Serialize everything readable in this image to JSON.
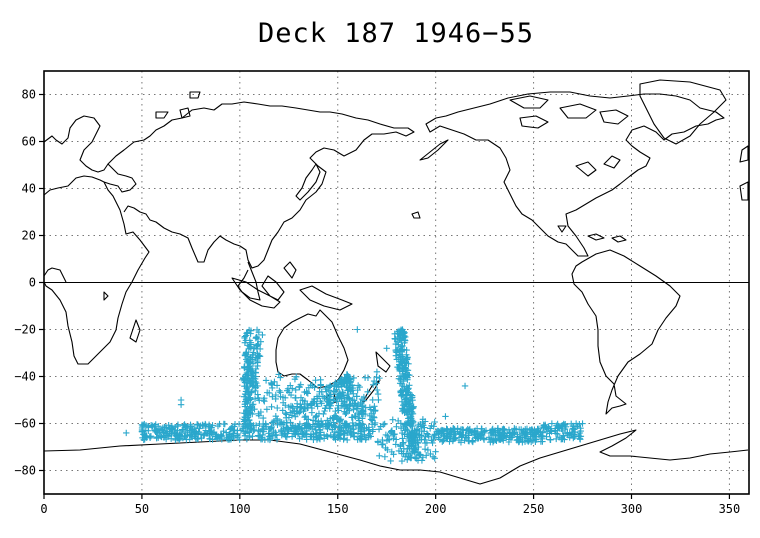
{
  "title": "Deck 187 1946−55",
  "map": {
    "x_ticks": [
      "0",
      "50",
      "100",
      "150",
      "200",
      "250",
      "300",
      "350"
    ],
    "y_ticks": [
      "80",
      "60",
      "40",
      "20",
      "0",
      "−20",
      "−40",
      "−60",
      "−80"
    ],
    "xlim": [
      0,
      360
    ],
    "ylim": [
      -90,
      90
    ],
    "grid": true,
    "equator_line": true,
    "marker": "+",
    "marker_color": "#2aa7cc",
    "coastline_color": "#000000"
  },
  "chart_data": {
    "type": "scatter",
    "title": "Deck 187 1946−55",
    "xlim": [
      0,
      360
    ],
    "ylim": [
      -90,
      90
    ],
    "observation_tracks": [
      {
        "lon_range": [
          40,
          280
        ],
        "lat_range": [
          -70,
          -60
        ]
      },
      {
        "lon_range": [
          100,
          112
        ],
        "lat_range": [
          -65,
          -20
        ]
      },
      {
        "lon_range": [
          140,
          170
        ],
        "lat_range": [
          -65,
          -38
        ]
      },
      {
        "lon_range": [
          175,
          195
        ],
        "lat_range": [
          -78,
          -20
        ]
      }
    ],
    "isolated_points": [
      [
        70,
        -50
      ],
      [
        70,
        -52
      ],
      [
        115,
        -47
      ],
      [
        125,
        -53
      ],
      [
        170,
        -38
      ],
      [
        175,
        -28
      ],
      [
        215,
        -44
      ],
      [
        205,
        -57
      ],
      [
        160,
        -20
      ],
      [
        42,
        -64
      ],
      [
        52,
        -63
      ]
    ]
  }
}
